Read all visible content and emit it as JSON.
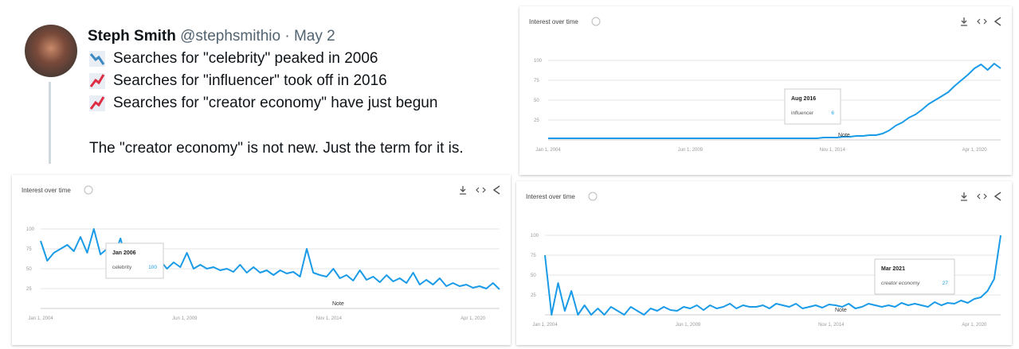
{
  "tweet": {
    "name": "Steph Smith",
    "handle": "@stephsmithio",
    "separator": "·",
    "date": "May 2",
    "lines": [
      "Searches for \"celebrity\" peaked in 2006",
      "Searches for \"influencer\" took off in 2016",
      "Searches for \"creator economy\" have just begun"
    ],
    "closing": "The \"creator economy\" is not new. Just the term for it is."
  },
  "chart_data": [
    {
      "type": "line",
      "title": "Interest over time",
      "note": "Note",
      "color": "#1a9be8",
      "tooltip": {
        "date": "Aug 2016",
        "series": "influencer",
        "value": 6
      },
      "ylim": [
        0,
        100
      ],
      "yticks": [
        25,
        50,
        75,
        100
      ],
      "grid": true,
      "xlim": [
        "2004-01-01",
        "2021-04-01"
      ],
      "xticks": [
        {
          "value": "2004-01-01",
          "label": "Jan 1, 2004"
        },
        {
          "value": "2009-06-01",
          "label": "Jun 1, 2009"
        },
        {
          "value": "2014-11-01",
          "label": "Nov 1, 2014"
        },
        {
          "value": "2020-04-01",
          "label": "Apr 1, 2020"
        }
      ],
      "x": [
        "2004-01-01",
        "2004-04-01",
        "2004-07-01",
        "2004-10-01",
        "2005-01-01",
        "2005-04-01",
        "2005-07-01",
        "2005-10-01",
        "2006-01-01",
        "2006-04-01",
        "2006-07-01",
        "2006-10-01",
        "2007-01-01",
        "2007-04-01",
        "2007-07-01",
        "2007-10-01",
        "2008-01-01",
        "2008-04-01",
        "2008-07-01",
        "2008-10-01",
        "2009-01-01",
        "2009-04-01",
        "2009-07-01",
        "2009-10-01",
        "2010-01-01",
        "2010-04-01",
        "2010-07-01",
        "2010-10-01",
        "2011-01-01",
        "2011-04-01",
        "2011-07-01",
        "2011-10-01",
        "2012-01-01",
        "2012-04-01",
        "2012-07-01",
        "2012-10-01",
        "2013-01-01",
        "2013-04-01",
        "2013-07-01",
        "2013-10-01",
        "2014-01-01",
        "2014-04-01",
        "2014-07-01",
        "2014-10-01",
        "2015-01-01",
        "2015-04-01",
        "2015-07-01",
        "2015-10-01",
        "2016-01-01",
        "2016-04-01",
        "2016-07-01",
        "2016-10-01",
        "2017-01-01",
        "2017-04-01",
        "2017-07-01",
        "2017-10-01",
        "2018-01-01",
        "2018-04-01",
        "2018-07-01",
        "2018-10-01",
        "2019-01-01",
        "2019-04-01",
        "2019-07-01",
        "2019-10-01",
        "2020-01-01",
        "2020-04-01",
        "2020-07-01",
        "2020-10-01",
        "2021-01-01",
        "2021-04-01"
      ],
      "values": [
        2,
        2,
        2,
        2,
        2,
        2,
        2,
        2,
        2,
        2,
        2,
        2,
        2,
        2,
        2,
        2,
        2,
        2,
        2,
        2,
        2,
        2,
        2,
        2,
        2,
        2,
        2,
        2,
        2,
        2,
        2,
        2,
        2,
        2,
        2,
        2,
        2,
        2,
        2,
        2,
        2,
        2,
        3,
        3,
        3,
        4,
        4,
        5,
        5,
        6,
        6,
        8,
        12,
        18,
        22,
        28,
        32,
        38,
        45,
        50,
        55,
        60,
        68,
        75,
        82,
        90,
        95,
        88,
        96,
        90
      ]
    },
    {
      "type": "line",
      "title": "Interest over time",
      "note": "Note",
      "color": "#1a9be8",
      "tooltip": {
        "date": "Jan 2006",
        "series": "celebrity",
        "value": 100
      },
      "ylim": [
        0,
        100
      ],
      "yticks": [
        25,
        50,
        75,
        100
      ],
      "grid": true,
      "xlim": [
        "2004-01-01",
        "2021-04-01"
      ],
      "xticks": [
        {
          "value": "2004-01-01",
          "label": "Jan 1, 2004"
        },
        {
          "value": "2009-06-01",
          "label": "Jun 1, 2009"
        },
        {
          "value": "2014-11-01",
          "label": "Nov 1, 2014"
        },
        {
          "value": "2020-04-01",
          "label": "Apr 1, 2020"
        }
      ],
      "x": [
        "2004-01-01",
        "2004-04-01",
        "2004-07-01",
        "2004-10-01",
        "2005-01-01",
        "2005-04-01",
        "2005-07-01",
        "2005-10-01",
        "2006-01-01",
        "2006-04-01",
        "2006-07-01",
        "2006-10-01",
        "2007-01-01",
        "2007-04-01",
        "2007-07-01",
        "2007-10-01",
        "2008-01-01",
        "2008-04-01",
        "2008-07-01",
        "2008-10-01",
        "2009-01-01",
        "2009-04-01",
        "2009-07-01",
        "2009-10-01",
        "2010-01-01",
        "2010-04-01",
        "2010-07-01",
        "2010-10-01",
        "2011-01-01",
        "2011-04-01",
        "2011-07-01",
        "2011-10-01",
        "2012-01-01",
        "2012-04-01",
        "2012-07-01",
        "2012-10-01",
        "2013-01-01",
        "2013-04-01",
        "2013-07-01",
        "2013-10-01",
        "2014-01-01",
        "2014-04-01",
        "2014-07-01",
        "2014-10-01",
        "2015-01-01",
        "2015-04-01",
        "2015-07-01",
        "2015-10-01",
        "2016-01-01",
        "2016-04-01",
        "2016-07-01",
        "2016-10-01",
        "2017-01-01",
        "2017-04-01",
        "2017-07-01",
        "2017-10-01",
        "2018-01-01",
        "2018-04-01",
        "2018-07-01",
        "2018-10-01",
        "2019-01-01",
        "2019-04-01",
        "2019-07-01",
        "2019-10-01",
        "2020-01-01",
        "2020-04-01",
        "2020-07-01",
        "2020-10-01",
        "2021-01-01",
        "2021-04-01"
      ],
      "values": [
        85,
        60,
        70,
        75,
        80,
        72,
        90,
        70,
        100,
        68,
        75,
        65,
        88,
        60,
        62,
        58,
        65,
        55,
        60,
        50,
        58,
        52,
        70,
        50,
        55,
        50,
        52,
        48,
        50,
        46,
        55,
        45,
        52,
        45,
        48,
        42,
        48,
        44,
        46,
        40,
        75,
        45,
        42,
        40,
        50,
        38,
        42,
        35,
        48,
        36,
        40,
        33,
        42,
        34,
        38,
        32,
        45,
        30,
        36,
        30,
        38,
        28,
        32,
        28,
        30,
        26,
        28,
        25,
        32,
        24
      ]
    },
    {
      "type": "line",
      "title": "Interest over time",
      "note": "Note",
      "color": "#1a9be8",
      "tooltip": {
        "date": "Mar 2021",
        "series": "creator economy",
        "value": 27
      },
      "ylim": [
        0,
        100
      ],
      "yticks": [
        25,
        50,
        75,
        100
      ],
      "grid": true,
      "xlim": [
        "2004-01-01",
        "2021-04-01"
      ],
      "xticks": [
        {
          "value": "2004-01-01",
          "label": "Jan 1, 2004"
        },
        {
          "value": "2009-06-01",
          "label": "Jun 1, 2009"
        },
        {
          "value": "2014-11-01",
          "label": "Nov 1, 2014"
        },
        {
          "value": "2020-04-01",
          "label": "Apr 1, 2020"
        }
      ],
      "x": [
        "2004-01-01",
        "2004-04-01",
        "2004-07-01",
        "2004-10-01",
        "2005-01-01",
        "2005-04-01",
        "2005-07-01",
        "2005-10-01",
        "2006-01-01",
        "2006-04-01",
        "2006-07-01",
        "2006-10-01",
        "2007-01-01",
        "2007-04-01",
        "2007-07-01",
        "2007-10-01",
        "2008-01-01",
        "2008-04-01",
        "2008-07-01",
        "2008-10-01",
        "2009-01-01",
        "2009-04-01",
        "2009-07-01",
        "2009-10-01",
        "2010-01-01",
        "2010-04-01",
        "2010-07-01",
        "2010-10-01",
        "2011-01-01",
        "2011-04-01",
        "2011-07-01",
        "2011-10-01",
        "2012-01-01",
        "2012-04-01",
        "2012-07-01",
        "2012-10-01",
        "2013-01-01",
        "2013-04-01",
        "2013-07-01",
        "2013-10-01",
        "2014-01-01",
        "2014-04-01",
        "2014-07-01",
        "2014-10-01",
        "2015-01-01",
        "2015-04-01",
        "2015-07-01",
        "2015-10-01",
        "2016-01-01",
        "2016-04-01",
        "2016-07-01",
        "2016-10-01",
        "2017-01-01",
        "2017-04-01",
        "2017-07-01",
        "2017-10-01",
        "2018-01-01",
        "2018-04-01",
        "2018-07-01",
        "2018-10-01",
        "2019-01-01",
        "2019-04-01",
        "2019-07-01",
        "2019-10-01",
        "2020-01-01",
        "2020-04-01",
        "2020-07-01",
        "2020-10-01",
        "2021-01-01",
        "2021-04-01"
      ],
      "values": [
        75,
        0,
        40,
        5,
        30,
        0,
        12,
        0,
        8,
        0,
        10,
        5,
        0,
        10,
        5,
        0,
        8,
        5,
        10,
        6,
        5,
        10,
        8,
        12,
        6,
        12,
        8,
        10,
        14,
        8,
        12,
        10,
        10,
        12,
        8,
        14,
        12,
        10,
        14,
        8,
        10,
        12,
        9,
        13,
        12,
        10,
        14,
        8,
        10,
        14,
        12,
        10,
        12,
        10,
        15,
        12,
        14,
        12,
        10,
        16,
        12,
        15,
        14,
        18,
        15,
        20,
        22,
        30,
        45,
        100
      ]
    }
  ]
}
